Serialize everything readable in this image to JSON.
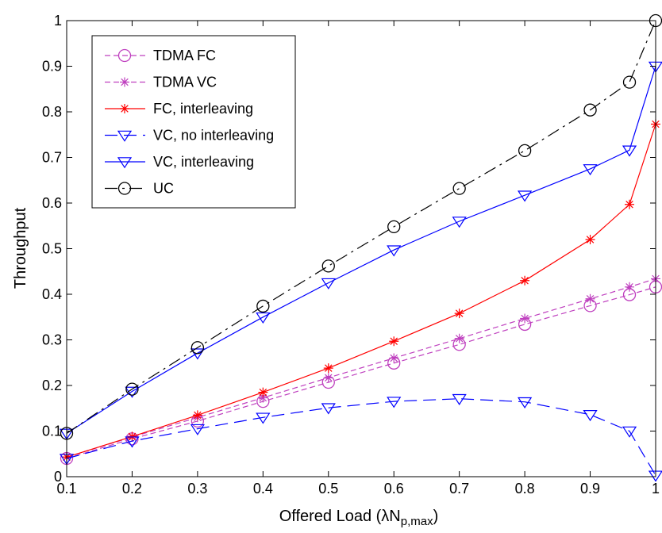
{
  "chart_data": {
    "type": "line",
    "title": "",
    "xlabel": "Offered Load (λN",
    "xlabel_sub": "p,max",
    "xlabel_close": ")",
    "ylabel": "Throughput",
    "xlim": [
      0.1,
      1
    ],
    "ylim": [
      0,
      1
    ],
    "xticks": [
      0.1,
      0.2,
      0.3,
      0.4,
      0.5,
      0.6,
      0.7,
      0.8,
      0.9,
      1
    ],
    "xtick_labels": [
      "0.1",
      "0.2",
      "0.3",
      "0.4",
      "0.5",
      "0.6",
      "0.7",
      "0.8",
      "0.9",
      "1"
    ],
    "yticks": [
      0,
      0.1,
      0.2,
      0.3,
      0.4,
      0.5,
      0.6,
      0.7,
      0.8,
      0.9,
      1
    ],
    "ytick_labels": [
      "0",
      "0.1",
      "0.2",
      "0.3",
      "0.4",
      "0.5",
      "0.6",
      "0.7",
      "0.8",
      "0.9",
      "1"
    ],
    "grid": false,
    "legend_position": "top-left",
    "series": [
      {
        "name": "TDMA FC",
        "color": "#bf40bf",
        "dash": "dashed",
        "marker": "circle",
        "x": [
          0.1,
          0.2,
          0.3,
          0.4,
          0.5,
          0.6,
          0.7,
          0.8,
          0.9,
          0.96,
          1.0
        ],
        "y": [
          0.04,
          0.083,
          0.122,
          0.165,
          0.207,
          0.249,
          0.29,
          0.334,
          0.375,
          0.399,
          0.416
        ]
      },
      {
        "name": "TDMA VC",
        "color": "#bf40bf",
        "dash": "dashed",
        "marker": "star",
        "x": [
          0.1,
          0.2,
          0.3,
          0.4,
          0.5,
          0.6,
          0.7,
          0.8,
          0.9,
          0.96,
          1.0
        ],
        "y": [
          0.043,
          0.087,
          0.13,
          0.173,
          0.217,
          0.26,
          0.303,
          0.347,
          0.39,
          0.416,
          0.434
        ]
      },
      {
        "name": "FC, interleaving",
        "color": "#ff0000",
        "dash": "solid",
        "marker": "star",
        "x": [
          0.1,
          0.2,
          0.3,
          0.4,
          0.5,
          0.6,
          0.7,
          0.8,
          0.9,
          0.96,
          1.0
        ],
        "y": [
          0.043,
          0.088,
          0.135,
          0.185,
          0.238,
          0.297,
          0.358,
          0.43,
          0.52,
          0.597,
          0.773
        ]
      },
      {
        "name": "VC, no interleaving",
        "color": "#0000ff",
        "dash": "longdash",
        "marker": "triangle-down",
        "x": [
          0.1,
          0.2,
          0.3,
          0.4,
          0.5,
          0.6,
          0.7,
          0.8,
          0.9,
          0.96,
          1.0
        ],
        "y": [
          0.04,
          0.078,
          0.105,
          0.13,
          0.151,
          0.165,
          0.171,
          0.164,
          0.136,
          0.1,
          0.003
        ]
      },
      {
        "name": "VC, interleaving",
        "color": "#0000ff",
        "dash": "solid",
        "marker": "triangle-down",
        "x": [
          0.1,
          0.2,
          0.3,
          0.4,
          0.5,
          0.6,
          0.7,
          0.8,
          0.9,
          0.96,
          1.0
        ],
        "y": [
          0.095,
          0.187,
          0.271,
          0.35,
          0.425,
          0.497,
          0.56,
          0.617,
          0.675,
          0.716,
          0.9
        ]
      },
      {
        "name": "UC",
        "color": "#000000",
        "dash": "dashdot",
        "marker": "circle",
        "x": [
          0.1,
          0.2,
          0.3,
          0.4,
          0.5,
          0.6,
          0.7,
          0.8,
          0.9,
          0.96,
          1.0
        ],
        "y": [
          0.095,
          0.192,
          0.283,
          0.374,
          0.462,
          0.548,
          0.632,
          0.715,
          0.804,
          0.865,
          1.0
        ]
      }
    ]
  }
}
